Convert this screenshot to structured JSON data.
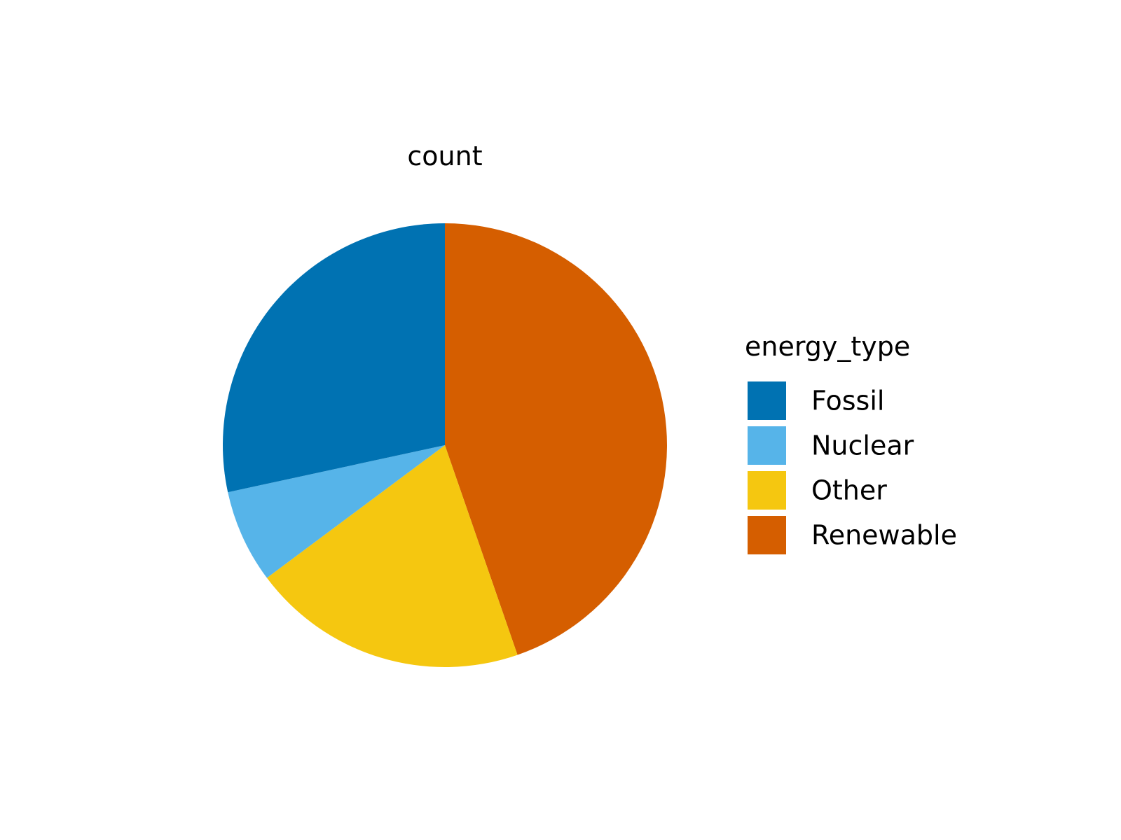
{
  "chart_data": {
    "type": "pie",
    "title": "count",
    "legend": {
      "title": "energy_type",
      "placement": "right"
    },
    "start_direction": "top",
    "rotation": "clockwise",
    "slices": [
      {
        "label": "Renewable",
        "value": 44.7,
        "color": "#D55E00"
      },
      {
        "label": "Other",
        "value": 20.1,
        "color": "#F5C710"
      },
      {
        "label": "Nuclear",
        "value": 6.8,
        "color": "#56B4E9"
      },
      {
        "label": "Fossil",
        "value": 28.4,
        "color": "#0072B2"
      }
    ],
    "legend_order": [
      "Fossil",
      "Nuclear",
      "Other",
      "Renewable"
    ]
  }
}
